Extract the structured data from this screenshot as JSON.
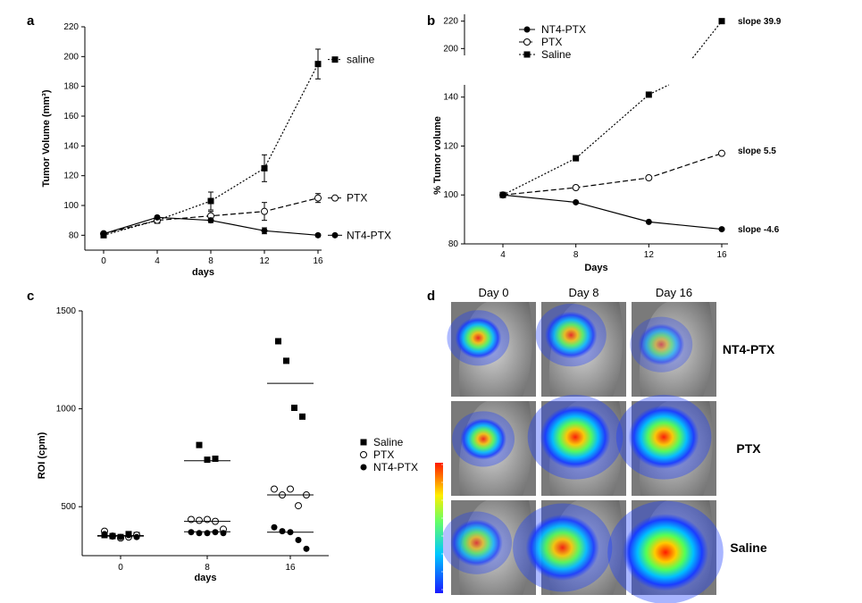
{
  "chart_data": [
    {
      "panel": "a",
      "type": "line",
      "xlabel": "days",
      "ylabel": "Tumor Volume (mm³)",
      "x": [
        0,
        4,
        8,
        12,
        16
      ],
      "xticks": [
        "0",
        "4",
        "8",
        "12",
        "16"
      ],
      "ylim": [
        70,
        220
      ],
      "yticks": [
        80,
        100,
        120,
        140,
        160,
        180,
        200,
        220
      ],
      "series": [
        {
          "name": "saline",
          "marker": "square",
          "dash": "dotted",
          "values": [
            80,
            90,
            103,
            125,
            195
          ],
          "err": [
            1.5,
            2,
            6,
            9,
            10
          ]
        },
        {
          "name": "PTX",
          "marker": "open-circle",
          "dash": "dashed",
          "values": [
            81,
            90,
            93,
            96,
            105
          ],
          "err": [
            1,
            1.5,
            3,
            6,
            3
          ]
        },
        {
          "name": "NT4-PTX",
          "marker": "filled-circle",
          "dash": "solid",
          "values": [
            81,
            92,
            90,
            83,
            80
          ],
          "err": [
            1,
            1,
            1.5,
            2,
            1
          ]
        }
      ]
    },
    {
      "panel": "b",
      "type": "line",
      "xlabel": "Days",
      "ylabel": "% Tumor volume",
      "x": [
        4,
        8,
        12,
        16
      ],
      "xticks": [
        "4",
        "8",
        "12",
        "16"
      ],
      "ylim_lower": [
        80,
        145
      ],
      "ylim_upper": [
        195,
        225
      ],
      "yticks_lower": [
        80,
        100,
        120,
        140
      ],
      "yticks_upper": [
        200,
        220
      ],
      "legend": [
        "NT4-PTX",
        "PTX",
        "Saline"
      ],
      "series": [
        {
          "name": "NT4-PTX",
          "marker": "filled-circle",
          "dash": "solid",
          "values": [
            100,
            97,
            89,
            86
          ],
          "slope_label": "slope -4.6"
        },
        {
          "name": "PTX",
          "marker": "open-circle",
          "dash": "dashed",
          "values": [
            100,
            103,
            107,
            117
          ],
          "slope_label": "slope 5.5"
        },
        {
          "name": "Saline",
          "marker": "square",
          "dash": "dotted",
          "values": [
            100,
            115,
            141,
            220
          ],
          "slope_label": "slope 39.9"
        }
      ]
    },
    {
      "panel": "c",
      "type": "scatter",
      "xlabel": "days",
      "ylabel": "ROI (cpm)",
      "categories": [
        "0",
        "8",
        "16"
      ],
      "ylim": [
        250,
        1500
      ],
      "yticks": [
        500,
        1000,
        1500
      ],
      "legend": [
        "Saline",
        "PTX",
        "NT4-PTX"
      ],
      "series": [
        {
          "name": "Saline",
          "marker": "square",
          "points": [
            [
              0,
              355
            ],
            [
              0,
              350
            ],
            [
              0,
              345
            ],
            [
              0,
              360
            ],
            [
              0,
              355
            ],
            [
              8,
              815
            ],
            [
              8,
              740
            ],
            [
              8,
              745
            ],
            [
              16,
              1345
            ],
            [
              16,
              1245
            ],
            [
              16,
              1005
            ],
            [
              16,
              960
            ]
          ],
          "means": [
            352,
            735,
            1130
          ]
        },
        {
          "name": "PTX",
          "marker": "open-circle",
          "points": [
            [
              0,
              375
            ],
            [
              0,
              350
            ],
            [
              0,
              340
            ],
            [
              0,
              345
            ],
            [
              0,
              355
            ],
            [
              8,
              435
            ],
            [
              8,
              430
            ],
            [
              8,
              435
            ],
            [
              8,
              425
            ],
            [
              8,
              385
            ],
            [
              16,
              590
            ],
            [
              16,
              560
            ],
            [
              16,
              590
            ],
            [
              16,
              505
            ],
            [
              16,
              560
            ]
          ],
          "means": [
            352,
            425,
            560
          ]
        },
        {
          "name": "NT4-PTX",
          "marker": "filled-circle",
          "points": [
            [
              0,
              360
            ],
            [
              0,
              350
            ],
            [
              0,
              345
            ],
            [
              0,
              355
            ],
            [
              0,
              345
            ],
            [
              8,
              370
            ],
            [
              8,
              365
            ],
            [
              8,
              365
            ],
            [
              8,
              370
            ],
            [
              8,
              365
            ],
            [
              16,
              395
            ],
            [
              16,
              375
            ],
            [
              16,
              370
            ],
            [
              16,
              330
            ],
            [
              16,
              285
            ]
          ],
          "means": [
            350,
            372,
            370
          ]
        }
      ]
    }
  ],
  "panel_d": {
    "letter": "d",
    "columns": [
      "Day 0",
      "Day 8",
      "Day 16"
    ],
    "rows": [
      {
        "label": "NT4-PTX",
        "cells": [
          {
            "intensity": 0.85,
            "spot": 0.35
          },
          {
            "intensity": 0.8,
            "spot": 0.45
          },
          {
            "intensity": 0.55,
            "spot": 0.35
          }
        ]
      },
      {
        "label": "PTX",
        "cells": [
          {
            "intensity": 0.85,
            "spot": 0.35
          },
          {
            "intensity": 0.95,
            "spot": 0.75
          },
          {
            "intensity": 0.95,
            "spot": 0.75
          }
        ]
      },
      {
        "label": "Saline",
        "cells": [
          {
            "intensity": 0.7,
            "spot": 0.45
          },
          {
            "intensity": 0.9,
            "spot": 0.8
          },
          {
            "intensity": 1.0,
            "spot": 1.0
          }
        ]
      }
    ]
  },
  "colors": {
    "ink": "#000000",
    "image_bg": "#7a7a7a"
  }
}
